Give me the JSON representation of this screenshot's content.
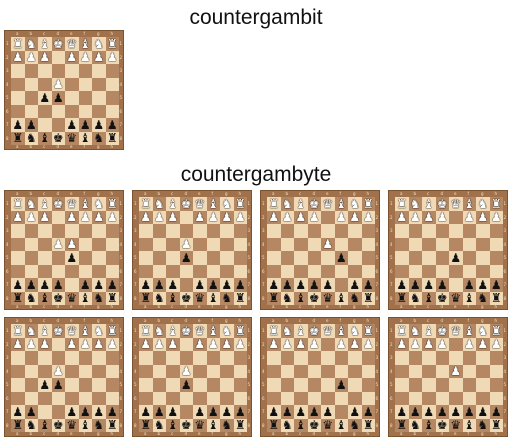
{
  "headings": {
    "section1": "countergambit",
    "section2": "countergambyte"
  },
  "colors": {
    "light_square": "#f0d9b5",
    "dark_square": "#b58863",
    "board_frame": "#a0714a"
  },
  "coordinates": {
    "files": [
      "a",
      "b",
      "c",
      "d",
      "e",
      "f",
      "g",
      "h"
    ],
    "ranks": [
      "1",
      "2",
      "3",
      "4",
      "5",
      "6",
      "7",
      "8"
    ]
  },
  "boards": [
    {
      "section": 1,
      "rows": [
        "RNBKQBNR",
        "PPP.PPPP",
        "........",
        "...P....",
        "..pp....",
        "........",
        "pp..pppp",
        "rnbkqbnr"
      ]
    },
    {
      "section": 2,
      "rows": [
        "RNBKQBNR",
        "PPP.PPPP",
        "........",
        "...PP...",
        "....p...",
        "........",
        "pppp.ppp",
        "rnbkqbnr"
      ]
    },
    {
      "section": 2,
      "rows": [
        "RNBKQBNR",
        "PPP.PPPP",
        "........",
        "...P....",
        "...p....",
        "........",
        "ppp.pppp",
        "rnbkqbnr"
      ]
    },
    {
      "section": 2,
      "rows": [
        "RNBKQBNR",
        "PPPP.PPP",
        "........",
        "....P...",
        ".....p..",
        "........",
        "ppppp.pp",
        "rnbkqbnr"
      ]
    },
    {
      "section": 2,
      "rows": [
        "RNBKQBNR",
        "PPPP.PPP",
        "........",
        "........",
        "....p...",
        "........",
        "pppp.ppp",
        "rnbkqbnr"
      ]
    },
    {
      "section": 2,
      "rows": [
        "RNBKQBNR",
        "PPP.PPPP",
        "........",
        "...P....",
        "..pp....",
        "........",
        "pp..pppp",
        "rnbkqbnr"
      ]
    },
    {
      "section": 2,
      "rows": [
        "RNBKQBNR",
        "PPP.PPPP",
        "........",
        "...P....",
        "...p....",
        "........",
        "ppp.pppp",
        "rnbkqbnr"
      ]
    },
    {
      "section": 2,
      "rows": [
        "RNBKQBNR",
        "PPPP.PPP",
        "........",
        "........",
        ".....p..",
        "........",
        "ppppp.pp",
        "rnbkqbnr"
      ]
    },
    {
      "section": 2,
      "rows": [
        "RNBKQBNR",
        "PPPP.PPP",
        "........",
        "....P...",
        "........",
        "........",
        "pppppppp",
        "rnbkqbnr"
      ]
    }
  ]
}
